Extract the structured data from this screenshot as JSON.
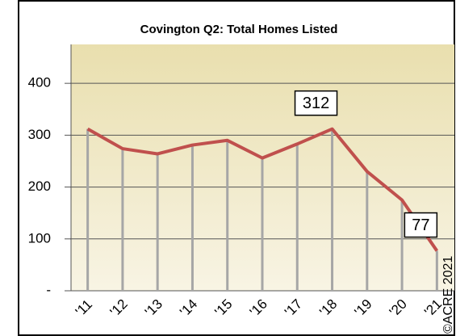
{
  "chart_data": {
    "type": "line",
    "title": "Covington Q2: Total Homes Listed",
    "categories": [
      "'11",
      "'12",
      "'13",
      "'14",
      "'15",
      "'16",
      "'17",
      "'18",
      "'19",
      "'20",
      "'21"
    ],
    "values": [
      312,
      274,
      264,
      281,
      290,
      256,
      283,
      312,
      230,
      175,
      77
    ],
    "value_labels": [
      null,
      null,
      null,
      null,
      null,
      null,
      null,
      "312",
      null,
      null,
      "77"
    ],
    "color": "#c0504d",
    "ylim": [
      0,
      475
    ],
    "yticks": [
      {
        "value": 0,
        "label": "-"
      },
      100,
      200,
      300,
      400
    ],
    "grid": true,
    "annotations": [
      "©ACRE 2021"
    ]
  }
}
